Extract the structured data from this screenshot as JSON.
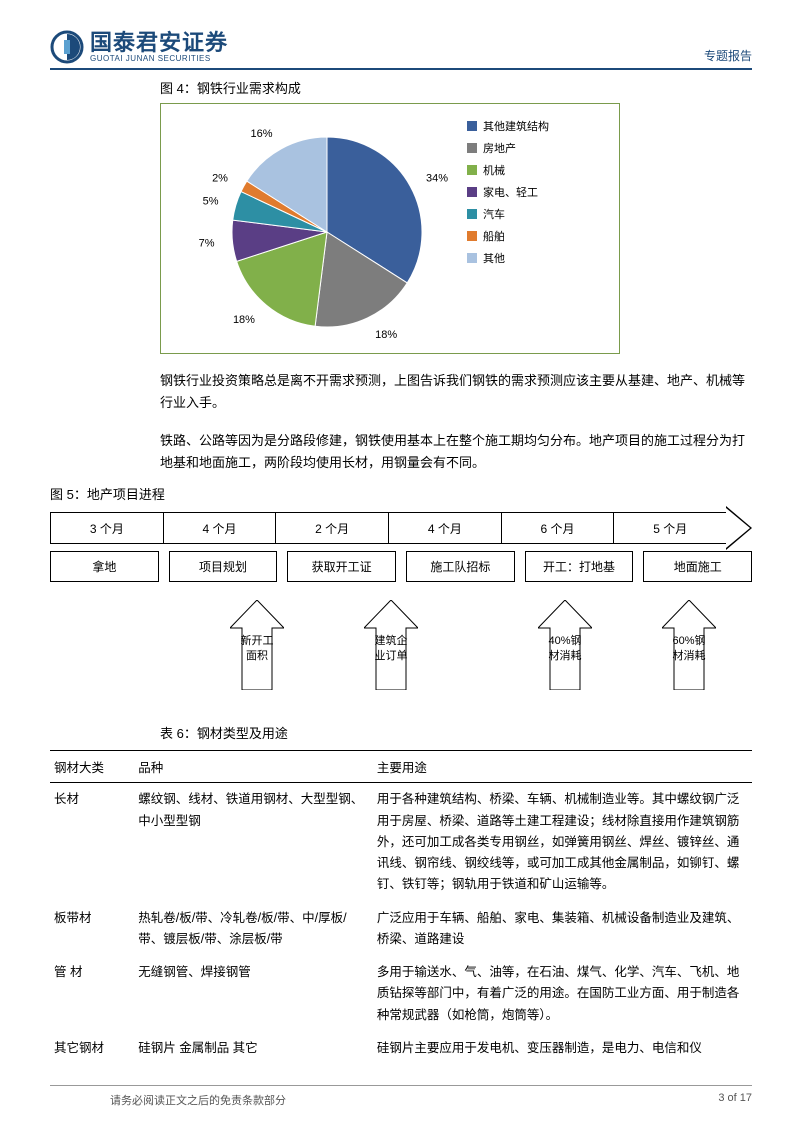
{
  "header": {
    "logo_cn": "国泰君安证券",
    "logo_en": "GUOTAI JUNAN SECURITIES",
    "report_type": "专题报告"
  },
  "fig4": {
    "caption": "图 4：钢铁行业需求构成",
    "type": "pie",
    "slices": [
      {
        "label": "其他建筑结构",
        "value": 34,
        "color": "#3a5f9b",
        "display": "34%"
      },
      {
        "label": "房地产",
        "value": 18,
        "color": "#7d7d7d",
        "display": "18%"
      },
      {
        "label": "机械",
        "value": 18,
        "color": "#81b04a",
        "display": "18%"
      },
      {
        "label": "家电、轻工",
        "value": 7,
        "color": "#5a3e85",
        "display": "7%"
      },
      {
        "label": "汽车",
        "value": 5,
        "color": "#2d8fa4",
        "display": "5%"
      },
      {
        "label": "船舶",
        "value": 2,
        "color": "#e07b2e",
        "display": "2%"
      },
      {
        "label": "其他",
        "value": 16,
        "color": "#a9c2e0",
        "display": "16%"
      }
    ],
    "bg_color": "#ffffff",
    "border_color": "#7a9b4c"
  },
  "para1": "钢铁行业投资策略总是离不开需求预测，上图告诉我们钢铁的需求预测应该主要从基建、地产、机械等行业入手。",
  "para2": "铁路、公路等因为是分路段修建，钢铁使用基本上在整个施工期均匀分布。地产项目的施工过程分为打地基和地面施工，两阶段均使用长材，用钢量会有不同。",
  "fig5": {
    "caption": "图 5：地产项目进程",
    "timeline": [
      "3 个月",
      "4 个月",
      "2 个月",
      "4 个月",
      "6 个月",
      "5 个月"
    ],
    "phases": [
      "拿地",
      "项目规划",
      "获取开工证",
      "施工队招标",
      "开工：打地基",
      "地面施工"
    ],
    "annotations": [
      {
        "text": "新开工面积"
      },
      {
        "text": "建筑企业订单"
      },
      {
        "text": "40%钢材消耗"
      },
      {
        "text": "60%钢材消耗"
      }
    ]
  },
  "table6": {
    "caption": "表 6：钢材类型及用途",
    "headers": [
      "钢材大类",
      "品种",
      "主要用途"
    ],
    "rows": [
      {
        "a": "长材",
        "b": "螺纹钢、线材、铁道用钢材、大型型钢、中小型型钢",
        "c": "用于各种建筑结构、桥梁、车辆、机械制造业等。其中螺纹钢广泛用于房屋、桥梁、道路等土建工程建设；线材除直接用作建筑钢筋外，还可加工成各类专用钢丝，如弹簧用钢丝、焊丝、镀锌丝、通讯线、钢帘线、钢绞线等，或可加工成其他金属制品，如铆钉、螺钉、铁钉等；钢轨用于铁道和矿山运输等。"
      },
      {
        "a": "板带材",
        "b": "热轧卷/板/带、冷轧卷/板/带、中/厚板/带、镀层板/带、涂层板/带",
        "c": "广泛应用于车辆、船舶、家电、集装箱、机械设备制造业及建筑、桥梁、道路建设"
      },
      {
        "a": "管 材",
        "b": "无缝钢管、焊接钢管",
        "c": "多用于输送水、气、油等，在石油、煤气、化学、汽车、飞机、地质钻探等部门中，有着广泛的用途。在国防工业方面、用于制造各种常规武器（如枪筒，炮筒等）。"
      },
      {
        "a": "其它钢材",
        "b": "硅钢片 金属制品 其它",
        "c": "硅钢片主要应用于发电机、变压器制造，是电力、电信和仪"
      }
    ]
  },
  "footer": {
    "disclaimer": "请务必阅读正文之后的免责条款部分",
    "page": "3 of 17"
  }
}
